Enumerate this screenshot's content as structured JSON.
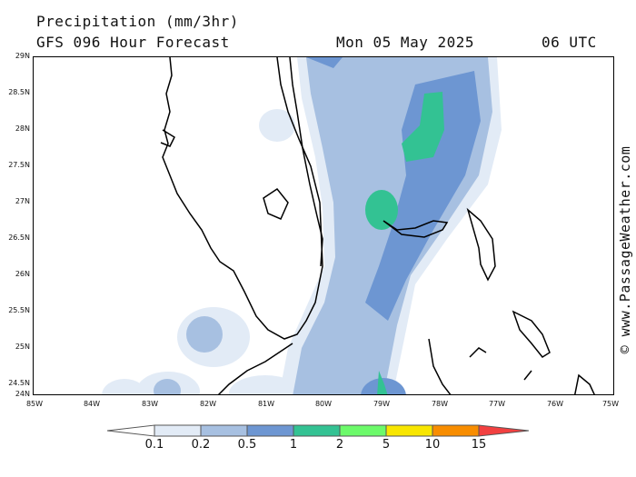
{
  "header": {
    "title": "Precipitation (mm/3hr)",
    "model": "GFS 096 Hour Forecast",
    "date": "Mon 05 May 2025",
    "time": "06 UTC"
  },
  "credit": "© www.PassageWeather.com",
  "axes": {
    "lat_labels": [
      "29N",
      "28.5N",
      "28N",
      "27.5N",
      "27N",
      "26.5N",
      "26N",
      "25.5N",
      "25N",
      "24.5N",
      "24N"
    ],
    "lon_labels": [
      "85W",
      "84W",
      "83W",
      "82W",
      "81W",
      "80W",
      "79W",
      "78W",
      "77W",
      "76W",
      "75W"
    ]
  },
  "legend": {
    "labels": [
      "0.1",
      "0.2",
      "0.5",
      "1",
      "2",
      "5",
      "10",
      "15"
    ],
    "colors": [
      "#e2ebf6",
      "#a7c0e1",
      "#6d96d2",
      "#33c293",
      "#6cfa6a",
      "#f8e600",
      "#f88d00",
      "#f24040"
    ]
  }
}
